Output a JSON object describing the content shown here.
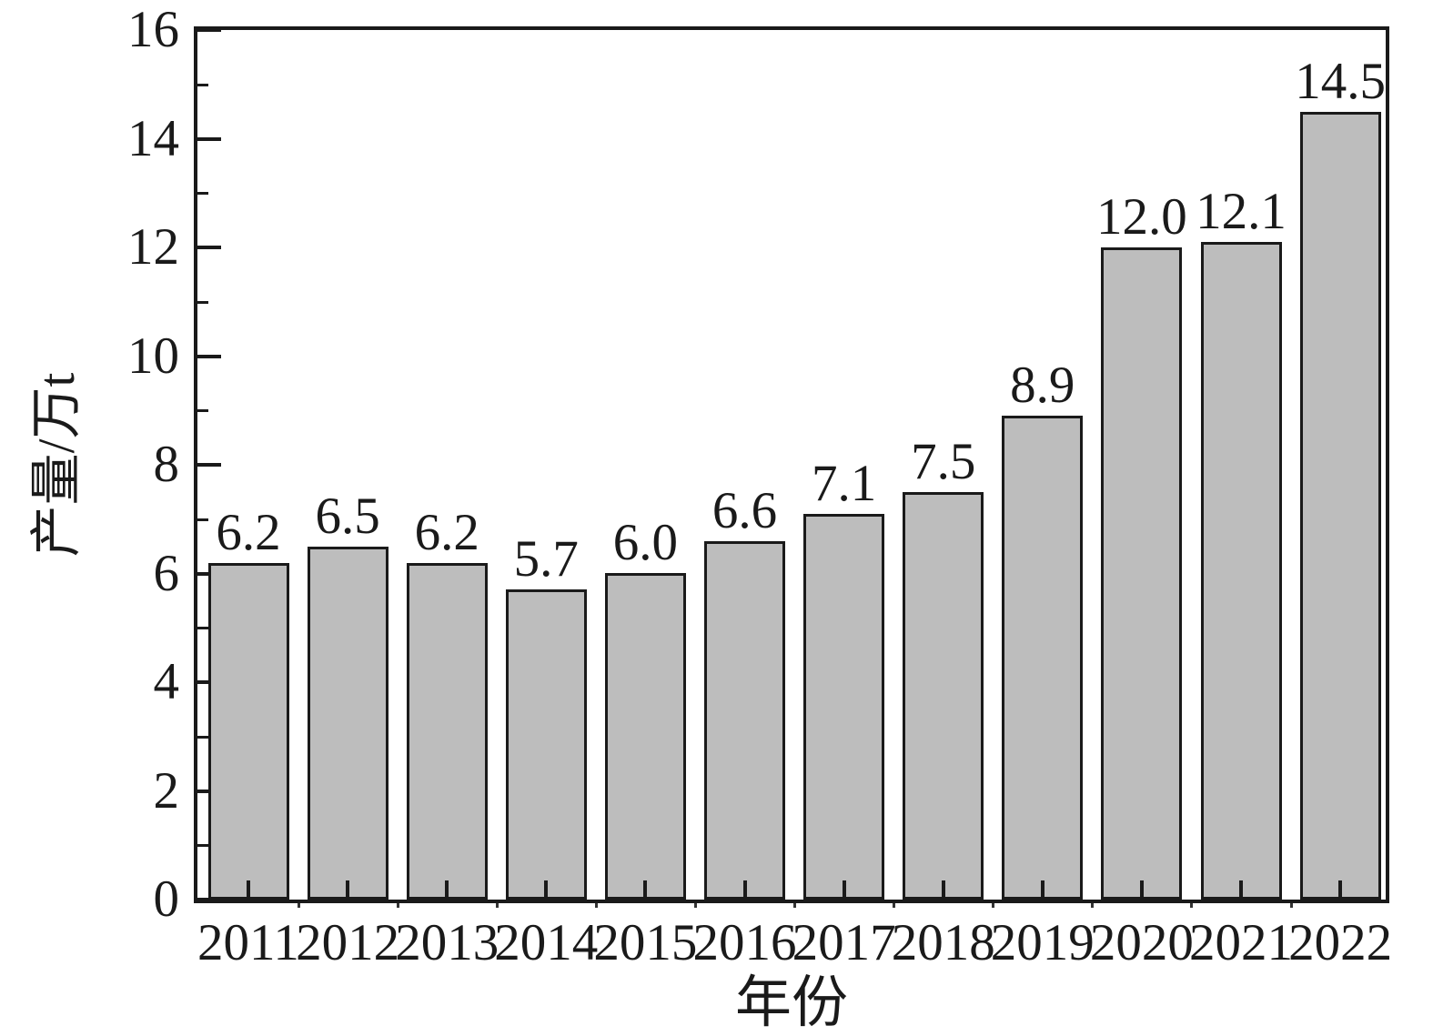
{
  "chart_data": {
    "type": "bar",
    "title": "",
    "xlabel": "年份",
    "ylabel": "产量/万t",
    "categories": [
      "2011",
      "2012",
      "2013",
      "2014",
      "2015",
      "2016",
      "2017",
      "2018",
      "2019",
      "2020",
      "2021",
      "2022"
    ],
    "values": [
      6.2,
      6.5,
      6.2,
      5.7,
      6.0,
      6.6,
      7.1,
      7.5,
      8.9,
      12.0,
      12.1,
      14.5
    ],
    "value_labels": [
      "6.2",
      "6.5",
      "6.2",
      "5.7",
      "6.0",
      "6.6",
      "7.1",
      "7.5",
      "8.9",
      "12.0",
      "12.1",
      "14.5"
    ],
    "ylim": [
      0,
      16
    ],
    "y_major_ticks": [
      0,
      2,
      4,
      6,
      8,
      10,
      12,
      14,
      16
    ],
    "y_major_tick_labels": [
      "0",
      "2",
      "4",
      "6",
      "8",
      "10",
      "12",
      "14",
      "16"
    ],
    "y_minor_ticks": [
      1,
      3,
      5,
      7,
      9,
      11,
      13,
      15
    ],
    "grid": false,
    "legend": null,
    "colors": {
      "bar_fill": "#bdbdbd",
      "bar_border": "#1a1a1a",
      "axis": "#1a1a1a",
      "text": "#1a1a1a",
      "background": "#ffffff"
    }
  }
}
